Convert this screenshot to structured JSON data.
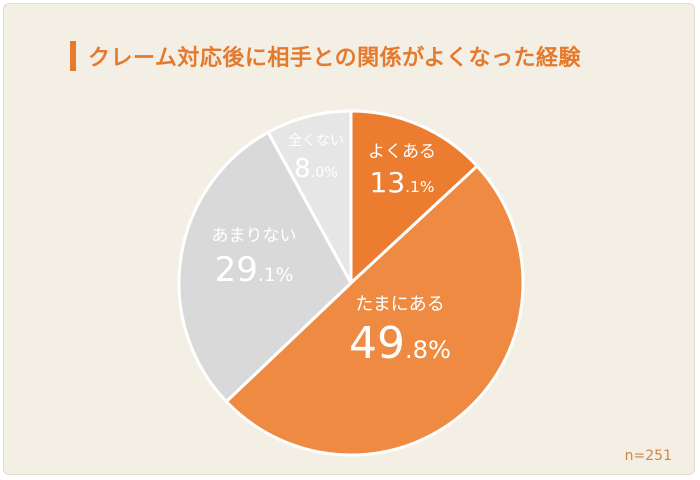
{
  "title": "クレーム対応後に相手との関係がよくなった経験",
  "sample_note": "n=251",
  "chart_data": {
    "type": "pie",
    "title": "クレーム対応後に相手との関係がよくなった経験",
    "slices": [
      {
        "label": "よくある",
        "int": "13",
        "dec": ".1%",
        "value": 13.1,
        "color": "#ec7c2f"
      },
      {
        "label": "たまにある",
        "int": "49",
        "dec": ".8%",
        "value": 49.8,
        "color": "#ef8a42"
      },
      {
        "label": "あまりない",
        "int": "29",
        "dec": ".1%",
        "value": 29.1,
        "color": "#d9d9d9"
      },
      {
        "label": "全くない",
        "int": "8",
        "dec": ".0%",
        "value": 8.0,
        "color": "#e6e6e6"
      }
    ]
  }
}
